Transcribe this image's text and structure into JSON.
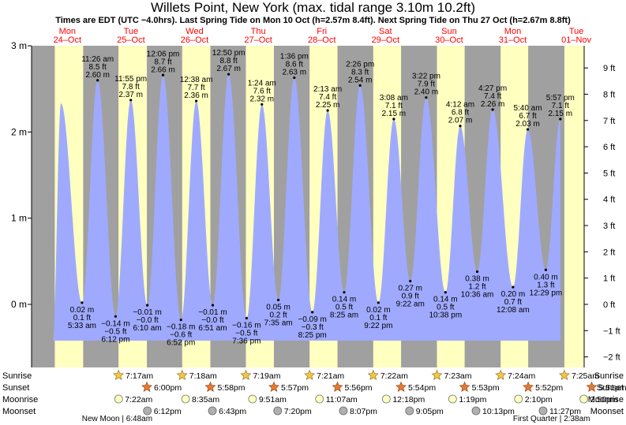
{
  "title": "Willets Point, New York (max. tidal range 3.10m 10.2ft)",
  "subtitle": "Times are EDT (UTC −4.0hrs). Last Spring Tide on Mon 10 Oct (h=2.57m 8.4ft). Next Spring Tide on Thu 27 Oct (h=2.67m 8.8ft)",
  "colors": {
    "night": "#a0a0a0",
    "day": "#ffffc0",
    "water": "#9faaff",
    "header_day": "#ff0000",
    "sun_star": "#f0c848",
    "sunset_star": "#e87a30",
    "moonrise": "#ffffc0",
    "moonset": "#b0b0b0"
  },
  "chart_data": {
    "type": "area",
    "days": [
      {
        "name": "Mon",
        "date": "24–Oct"
      },
      {
        "name": "Tue",
        "date": "25–Oct"
      },
      {
        "name": "Wed",
        "date": "26–Oct"
      },
      {
        "name": "Thu",
        "date": "27–Oct"
      },
      {
        "name": "Fri",
        "date": "28–Oct"
      },
      {
        "name": "Sat",
        "date": "29–Oct"
      },
      {
        "name": "Sun",
        "date": "30–Oct"
      },
      {
        "name": "Mon",
        "date": "31–Oct"
      },
      {
        "name": "Tue",
        "date": "01–Nov"
      }
    ],
    "y_left_unit": "m",
    "y_left_ticks": [
      0,
      1,
      2,
      3
    ],
    "y_left_labels": [
      "0 m",
      "1 m",
      "2 m",
      "3 m"
    ],
    "y_right_ticks": [
      -2,
      -1,
      0,
      1,
      2,
      3,
      4,
      5,
      6,
      7,
      8,
      9
    ],
    "y_right_labels": [
      "−2 ft",
      "−1 ft",
      "0 ft",
      "1 ft",
      "2 ft",
      "3 ft",
      "4 ft",
      "5 ft",
      "6 ft",
      "7 ft",
      "8 ft",
      "9 ft"
    ],
    "ylim_m": [
      -0.7,
      3.0
    ],
    "tides": [
      {
        "type": "high",
        "day": 0.4,
        "h": 2.33,
        "time": "",
        "m": "",
        "ft": ""
      },
      {
        "type": "low",
        "day": 0.731,
        "h": 0.02,
        "time": "5:33 am",
        "m": "0.02 m",
        "ft": "0.1 ft"
      },
      {
        "type": "high",
        "day": 0.976,
        "h": 2.6,
        "time": "11:26 am",
        "m": "2.60 m",
        "ft": "8.5 ft"
      },
      {
        "type": "low",
        "day": 1.258,
        "h": -0.14,
        "time": "6:12 pm",
        "m": "−0.14 m",
        "ft": "−0.5 ft"
      },
      {
        "type": "high",
        "day": 1.497,
        "h": 2.37,
        "time": "11:55 pm",
        "m": "2.37 m",
        "ft": "7.8 ft"
      },
      {
        "type": "low",
        "day": 1.757,
        "h": -0.01,
        "time": "6:10 am",
        "m": "−0.01 m",
        "ft": "−0.0 ft"
      },
      {
        "type": "high",
        "day": 2.004,
        "h": 2.66,
        "time": "12:06 pm",
        "m": "2.66 m",
        "ft": "8.7 ft"
      },
      {
        "type": "low",
        "day": 2.286,
        "h": -0.18,
        "time": "6:52 pm",
        "m": "−0.18 m",
        "ft": "−0.6 ft"
      },
      {
        "type": "high",
        "day": 2.526,
        "h": 2.36,
        "time": "12:38 am",
        "m": "2.36 m",
        "ft": "7.7 ft"
      },
      {
        "type": "low",
        "day": 2.785,
        "h": -0.01,
        "time": "6:51 am",
        "m": "−0.01 m",
        "ft": "−0.0 ft"
      },
      {
        "type": "high",
        "day": 3.035,
        "h": 2.67,
        "time": "12:50 pm",
        "m": "2.67 m",
        "ft": "8.8 ft"
      },
      {
        "type": "low",
        "day": 3.317,
        "h": -0.16,
        "time": "7:36 pm",
        "m": "−0.16 m",
        "ft": "−0.5 ft"
      },
      {
        "type": "high",
        "day": 3.558,
        "h": 2.32,
        "time": "1:24 am",
        "m": "2.32 m",
        "ft": "7.6 ft"
      },
      {
        "type": "low",
        "day": 3.816,
        "h": 0.05,
        "time": "7:35 am",
        "m": "0.05 m",
        "ft": "0.2 ft"
      },
      {
        "type": "high",
        "day": 4.067,
        "h": 2.63,
        "time": "1:36 pm",
        "m": "2.63 m",
        "ft": "8.6 ft"
      },
      {
        "type": "low",
        "day": 4.351,
        "h": -0.09,
        "time": "8:25 pm",
        "m": "−0.09 m",
        "ft": "−0.3 ft"
      },
      {
        "type": "high",
        "day": 4.592,
        "h": 2.25,
        "time": "2:13 am",
        "m": "2.25 m",
        "ft": "7.4 ft"
      },
      {
        "type": "low",
        "day": 4.851,
        "h": 0.14,
        "time": "8:25 am",
        "m": "0.14 m",
        "ft": "0.5 ft"
      },
      {
        "type": "high",
        "day": 5.101,
        "h": 2.54,
        "time": "2:26 pm",
        "m": "2.54 m",
        "ft": "8.3 ft"
      },
      {
        "type": "low",
        "day": 5.389,
        "h": 0.02,
        "time": "9:22 pm",
        "m": "0.02 m",
        "ft": "0.1 ft"
      },
      {
        "type": "high",
        "day": 5.631,
        "h": 2.15,
        "time": "3:08 am",
        "m": "2.15 m",
        "ft": "7.1 ft"
      },
      {
        "type": "low",
        "day": 5.89,
        "h": 0.27,
        "time": "9:22 am",
        "m": "0.27 m",
        "ft": "0.9 ft"
      },
      {
        "type": "high",
        "day": 6.14,
        "h": 2.4,
        "time": "3:22 pm",
        "m": "2.40 m",
        "ft": "7.9 ft"
      },
      {
        "type": "low",
        "day": 6.443,
        "h": 0.14,
        "time": "10:38 pm",
        "m": "0.14 m",
        "ft": "0.5 ft"
      },
      {
        "type": "high",
        "day": 6.675,
        "h": 2.07,
        "time": "4:12 am",
        "m": "2.07 m",
        "ft": "6.8 ft"
      },
      {
        "type": "low",
        "day": 6.942,
        "h": 0.38,
        "time": "10:36 am",
        "m": "0.38 m",
        "ft": "1.2 ft"
      },
      {
        "type": "high",
        "day": 7.185,
        "h": 2.26,
        "time": "4:27 pm",
        "m": "2.26 m",
        "ft": "7.4 ft"
      },
      {
        "type": "low",
        "day": 7.505,
        "h": 0.2,
        "time": "12:08 am",
        "m": "0.20 m",
        "ft": "0.7 ft"
      },
      {
        "type": "high",
        "day": 7.736,
        "h": 2.03,
        "time": "5:40 am",
        "m": "2.03 m",
        "ft": "6.7 ft"
      },
      {
        "type": "low",
        "day": 8.02,
        "h": 0.4,
        "time": "12:29 pm",
        "m": "0.40 m",
        "ft": "1.3 ft"
      },
      {
        "type": "high",
        "day": 8.248,
        "h": 2.15,
        "time": "5:57 pm",
        "m": "2.15 m",
        "ft": "7.1 ft"
      }
    ],
    "daylight": [
      {
        "sunrise": 0.303,
        "sunset": 0.749
      },
      {
        "sunrise": 1.304,
        "sunset": 1.75
      },
      {
        "sunrise": 2.305,
        "sunset": 2.748
      },
      {
        "sunrise": 3.306,
        "sunset": 3.747
      },
      {
        "sunrise": 4.307,
        "sunset": 4.746
      },
      {
        "sunrise": 5.308,
        "sunset": 5.745
      },
      {
        "sunrise": 6.309,
        "sunset": 6.744
      },
      {
        "sunrise": 7.31,
        "sunset": 7.743
      },
      {
        "sunrise": 8.312,
        "sunset": 8.741
      }
    ],
    "astro": {
      "labels": {
        "sunrise": "Sunrise",
        "sunset": "Sunset",
        "moonrise": "Moonrise",
        "moonset": "Moonset"
      },
      "sunrise": [
        {
          "day": 1.304,
          "time": "7:17am"
        },
        {
          "day": 2.305,
          "time": "7:18am"
        },
        {
          "day": 3.306,
          "time": "7:19am"
        },
        {
          "day": 4.307,
          "time": "7:21am"
        },
        {
          "day": 5.308,
          "time": "7:22am"
        },
        {
          "day": 6.309,
          "time": "7:23am"
        },
        {
          "day": 7.31,
          "time": "7:24am"
        },
        {
          "day": 8.312,
          "time": "7:25am"
        }
      ],
      "sunset": [
        {
          "day": 1.75,
          "time": "6:00pm"
        },
        {
          "day": 2.748,
          "time": "5:58pm"
        },
        {
          "day": 3.747,
          "time": "5:57pm"
        },
        {
          "day": 4.746,
          "time": "5:56pm"
        },
        {
          "day": 5.745,
          "time": "5:54pm"
        },
        {
          "day": 6.744,
          "time": "5:53pm"
        },
        {
          "day": 7.743,
          "time": "5:52pm"
        },
        {
          "day": 8.741,
          "time": "5:51pm"
        }
      ],
      "moonrise": [
        {
          "day": 1.306,
          "time": "7:22am"
        },
        {
          "day": 2.358,
          "time": "8:35am"
        },
        {
          "day": 3.41,
          "time": "9:51am"
        },
        {
          "day": 4.463,
          "time": "11:07am"
        },
        {
          "day": 5.513,
          "time": "12:18pm"
        },
        {
          "day": 6.555,
          "time": "1:19pm"
        },
        {
          "day": 7.59,
          "time": "2:10pm"
        },
        {
          "day": 8.618,
          "time": "2:50pm"
        }
      ],
      "moonset": [
        {
          "day": 1.758,
          "time": "6:12pm"
        },
        {
          "day": 2.78,
          "time": "6:43pm"
        },
        {
          "day": 3.806,
          "time": "7:20pm"
        },
        {
          "day": 4.838,
          "time": "8:07pm"
        },
        {
          "day": 5.878,
          "time": "9:05pm"
        },
        {
          "day": 6.923,
          "time": "10:13pm"
        },
        {
          "day": 7.977,
          "time": "11:27pm"
        }
      ],
      "moon_phases": [
        {
          "day": 1.283,
          "text": "New Moon | 6:48am"
        },
        {
          "day": 8.11,
          "text": "First Quarter | 2:38am"
        }
      ]
    }
  }
}
